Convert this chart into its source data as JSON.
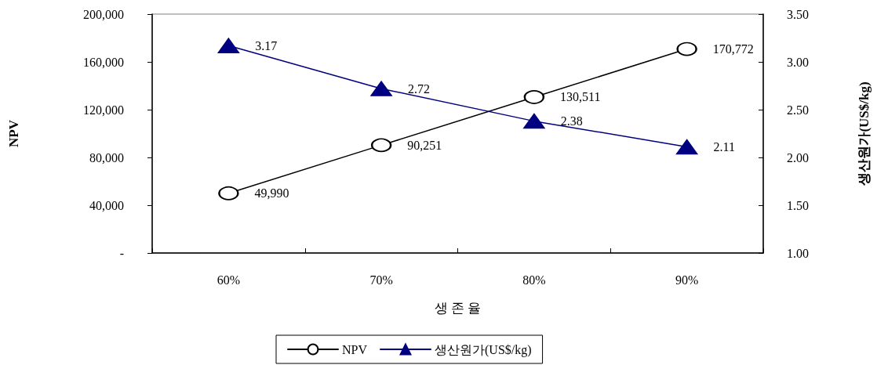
{
  "chart_data": {
    "type": "line",
    "xlabel": "생 존 율",
    "ylabel": "NPV",
    "y2label": "생산원가(US$/kg)",
    "categories": [
      "60%",
      "70%",
      "80%",
      "90%"
    ],
    "series": [
      {
        "name": "NPV",
        "color": "#000000",
        "marker": "circle",
        "values": [
          49990,
          90251,
          130511,
          170772
        ],
        "value_labels": [
          "49,990",
          "90,251",
          "130,511",
          "170,772"
        ]
      },
      {
        "name": "생산원가(US$/kg)",
        "color": "#000080",
        "marker": "triangle",
        "axis": "y2",
        "values": [
          3.17,
          2.72,
          2.38,
          2.11
        ],
        "value_labels": [
          "3.17",
          "2.72",
          "2.38",
          "2.11"
        ]
      }
    ],
    "ylim": [
      0,
      200000
    ],
    "yticks": [
      {
        "value": 0,
        "label": "-"
      },
      {
        "value": 40000,
        "label": "40,000"
      },
      {
        "value": 80000,
        "label": "80,000"
      },
      {
        "value": 120000,
        "label": "120,000"
      },
      {
        "value": 160000,
        "label": "160,000"
      },
      {
        "value": 200000,
        "label": "200,000"
      }
    ],
    "y2lim": [
      1,
      3.5
    ],
    "y2ticks": [
      {
        "value": 1,
        "label": "1.00"
      },
      {
        "value": 1.5,
        "label": "1.50"
      },
      {
        "value": 2,
        "label": "2.00"
      },
      {
        "value": 2.5,
        "label": "2.50"
      },
      {
        "value": 3,
        "label": "3.00"
      },
      {
        "value": 3.5,
        "label": "3.50"
      }
    ],
    "legend": "bottom",
    "line_style": "solid"
  }
}
